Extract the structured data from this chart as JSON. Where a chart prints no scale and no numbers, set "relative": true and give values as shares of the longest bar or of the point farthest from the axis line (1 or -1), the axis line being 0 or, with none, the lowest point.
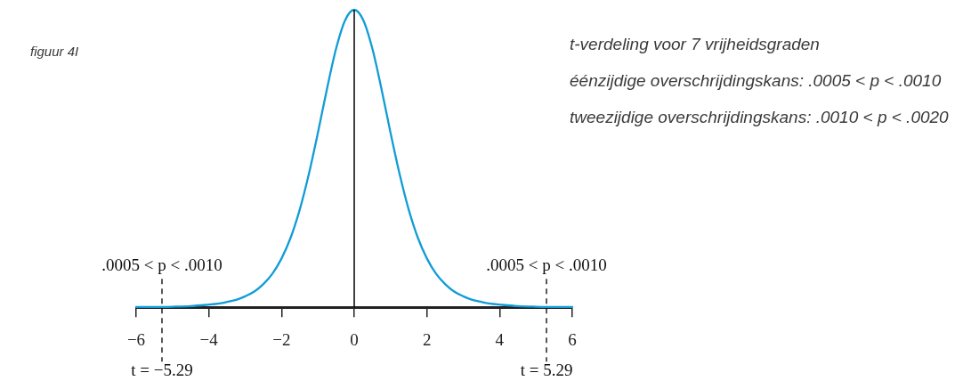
{
  "chart_data": {
    "type": "line",
    "title": "figuur 4I",
    "subtitle": "t-verdeling voor 7 vrijheidsgraden",
    "annotations": [
      "éénzijdige overschrijdingskans: .0005 < p < .0010",
      "tweezijdige overschrijdingskans: .0010 < p < .0020",
      ".0005 < p < .0010",
      ".0005 < p < .0010"
    ],
    "x": [
      -6,
      -5.5,
      -5,
      -4.5,
      -4,
      -3.75,
      -3.5,
      -3.25,
      -3,
      -2.75,
      -2.5,
      -2.25,
      -2,
      -1.75,
      -1.5,
      -1.25,
      -1,
      -0.75,
      -0.5,
      -0.25,
      0,
      0.25,
      0.5,
      0.75,
      1,
      1.25,
      1.5,
      1.75,
      2,
      2.25,
      2.5,
      2.75,
      3,
      3.25,
      3.5,
      3.75,
      4,
      4.5,
      5,
      5.5,
      6
    ],
    "values": [
      0.001,
      0.001,
      0.002,
      0.004,
      0.009,
      0.012,
      0.018,
      0.025,
      0.037,
      0.053,
      0.078,
      0.113,
      0.164,
      0.234,
      0.328,
      0.447,
      0.586,
      0.734,
      0.869,
      0.965,
      1,
      0.965,
      0.869,
      0.734,
      0.586,
      0.447,
      0.328,
      0.234,
      0.164,
      0.113,
      0.078,
      0.053,
      0.037,
      0.025,
      0.018,
      0.012,
      0.009,
      0.004,
      0.002,
      0.001,
      0.001
    ],
    "color": "#109cd8",
    "relative": true,
    "xlim": [
      -6,
      6
    ],
    "xticks": [
      {
        "value": -6,
        "label": "−6"
      },
      {
        "value": -4,
        "label": "−4"
      },
      {
        "value": -2,
        "label": "−2"
      },
      0,
      2,
      4,
      6
    ],
    "ref_lines": [
      {
        "axis": "x",
        "value": 0,
        "color": "#000000"
      },
      {
        "axis": "x",
        "value": -5.29,
        "label": "t = −5.29",
        "line_style": "dashed",
        "color": "#000000"
      },
      {
        "axis": "x",
        "value": 5.29,
        "label": "t = 5.29",
        "line_style": "dashed",
        "color": "#000000"
      }
    ]
  }
}
